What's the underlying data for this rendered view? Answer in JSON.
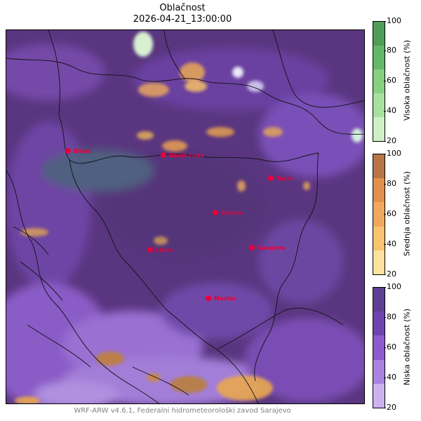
{
  "title": "Oblačnost",
  "datetime": "2026-04-21_13:00:00",
  "footer": "WRF-ARW v4.6.1, Federalni hidrometeorološki zavod Sarajevo",
  "cities": [
    "Bihać",
    "Banja Luka",
    "Tuzla",
    "Zenica",
    "Livno",
    "Sarajevo",
    "Mostar"
  ],
  "colorbars": [
    {
      "label": "Visoka oblačnost (%)",
      "ticks": [
        "100",
        "80",
        "60",
        "40",
        "20"
      ],
      "colors": [
        "#4f9e58",
        "#63b867",
        "#86d07f",
        "#a8e0a0",
        "#cdf0c6"
      ]
    },
    {
      "label": "Srednja oblačnost (%)",
      "ticks": [
        "100",
        "80",
        "60",
        "40",
        "20"
      ],
      "colors": [
        "#b77545",
        "#e2904e",
        "#f1a85c",
        "#f8c46f",
        "#fde29e"
      ]
    },
    {
      "label": "Niska oblačnost (%)",
      "ticks": [
        "100",
        "80",
        "60",
        "40",
        "20"
      ],
      "colors": [
        "#5e3f92",
        "#7044b0",
        "#8c5ccd",
        "#a983df",
        "#cdb2f0"
      ]
    }
  ],
  "colors": {
    "map_base": "#5a3680",
    "city_marker": "#e8003a",
    "footer": "#808080"
  }
}
